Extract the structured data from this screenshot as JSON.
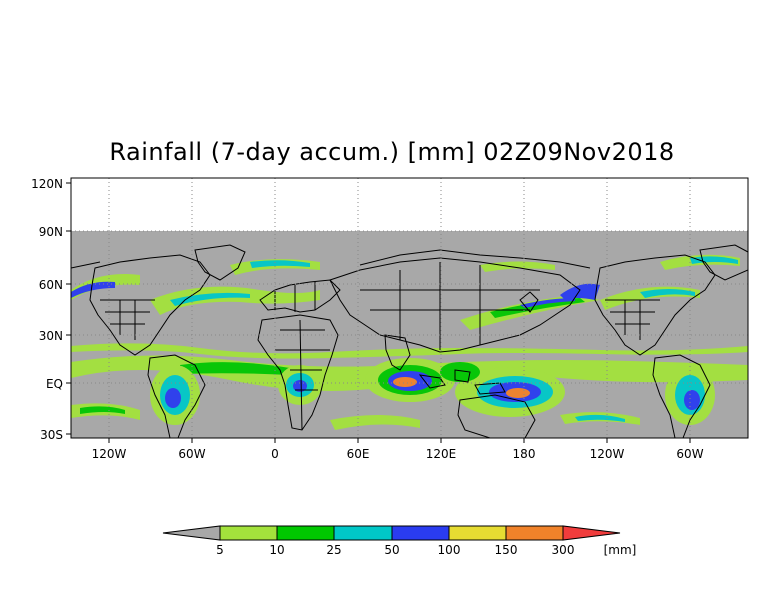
{
  "title": "Rainfall (7-day accum.) [mm] 02Z09Nov2018",
  "map": {
    "lat_labels": [
      "120N",
      "90N",
      "60N",
      "30N",
      "EQ",
      "30S"
    ],
    "lon_labels": [
      "120W",
      "60W",
      "0",
      "60E",
      "120E",
      "180",
      "120W",
      "60W"
    ],
    "land_mask_color": "#a8a8a8",
    "frame_color": "#000000"
  },
  "colorbar": {
    "unit": "[mm]",
    "labels": [
      "5",
      "10",
      "25",
      "50",
      "100",
      "150",
      "300"
    ],
    "colors": [
      "#a8a8a8",
      "#a3e23c",
      "#00c800",
      "#00c8c8",
      "#2a3cf0",
      "#e6dc32",
      "#f0822a",
      "#f03c3c"
    ]
  }
}
